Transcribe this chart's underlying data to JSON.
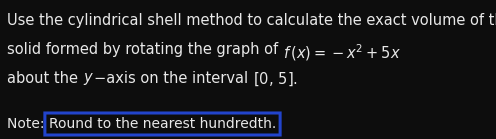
{
  "background_color": "#0d0d0d",
  "text_color": "#e8e8e8",
  "note_color": "#d0d0d0",
  "line1": "Use the cylindrical shell method to calculate the exact volume of the",
  "line2_plain": "solid formed by rotating the graph of ",
  "line2_math": "$f\\,(x) = -x^2 + 5x$",
  "line3_plain1": "about the ",
  "line3_math1": "$y$",
  "line3_plain2": "−axis on the interval ",
  "line3_math2": "$[0,\\, 5].$",
  "note_prefix": "Note: ",
  "note_suffix": "Round to the nearest hundredth.",
  "font_size_body": 10.5,
  "font_size_note": 10.0,
  "oval_color": "#2244cc",
  "oval_linewidth": 2.2,
  "fig_width": 4.96,
  "fig_height": 1.39,
  "dpi": 100
}
